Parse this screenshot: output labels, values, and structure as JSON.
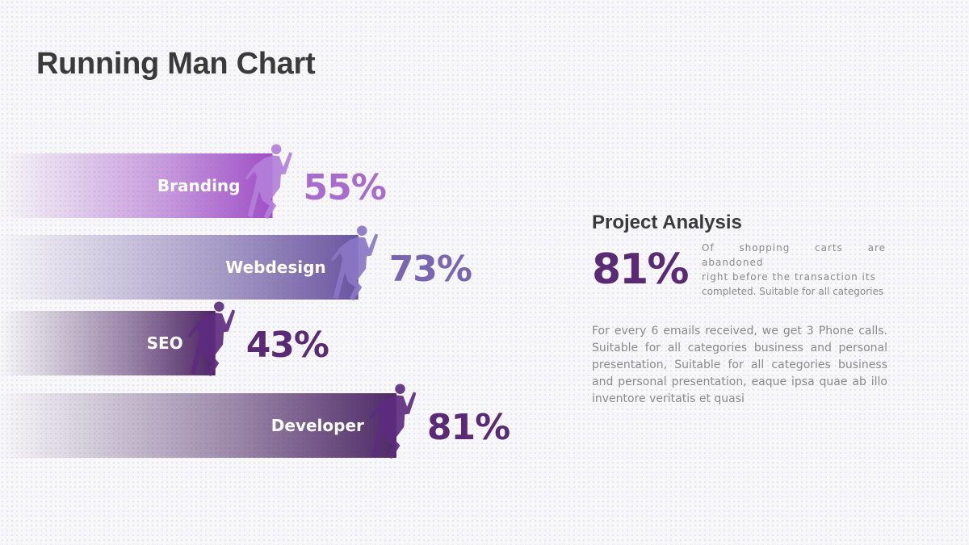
{
  "title": "Running Man Chart",
  "chart_data": {
    "type": "bar",
    "title": "Running Man Chart",
    "categories": [
      "Branding",
      "Webdesign",
      "SEO",
      "Developer"
    ],
    "values": [
      55,
      73,
      43,
      81
    ],
    "value_labels": [
      "55%",
      "73%",
      "43%",
      "81%"
    ],
    "unit": "%",
    "xlim": [
      0,
      100
    ],
    "colors": [
      "#9f4fc6",
      "#6a55a0",
      "#4d2564",
      "#4e2a66"
    ],
    "value_colors": [
      "#a86ccf",
      "#7a65b0",
      "#5a2a74",
      "#5a2a74"
    ],
    "runner_colors": [
      "#b37fd8",
      "#8a76c4",
      "#5e2b80",
      "#5e2b80"
    ]
  },
  "analysis": {
    "heading": "Project Analysis",
    "stat_value": "81%",
    "stat_desc_lines": [
      "Of shopping carts are abandoned",
      "right before the transaction its",
      "completed. Suitable for all categories"
    ],
    "body": "For every 6 emails received, we get 3 Phone calls. Suitable for all categories business and personal presentation, Suitable for all categories business and personal presentation, eaque ipsa quae ab illo inventore veritatis et quasi"
  }
}
